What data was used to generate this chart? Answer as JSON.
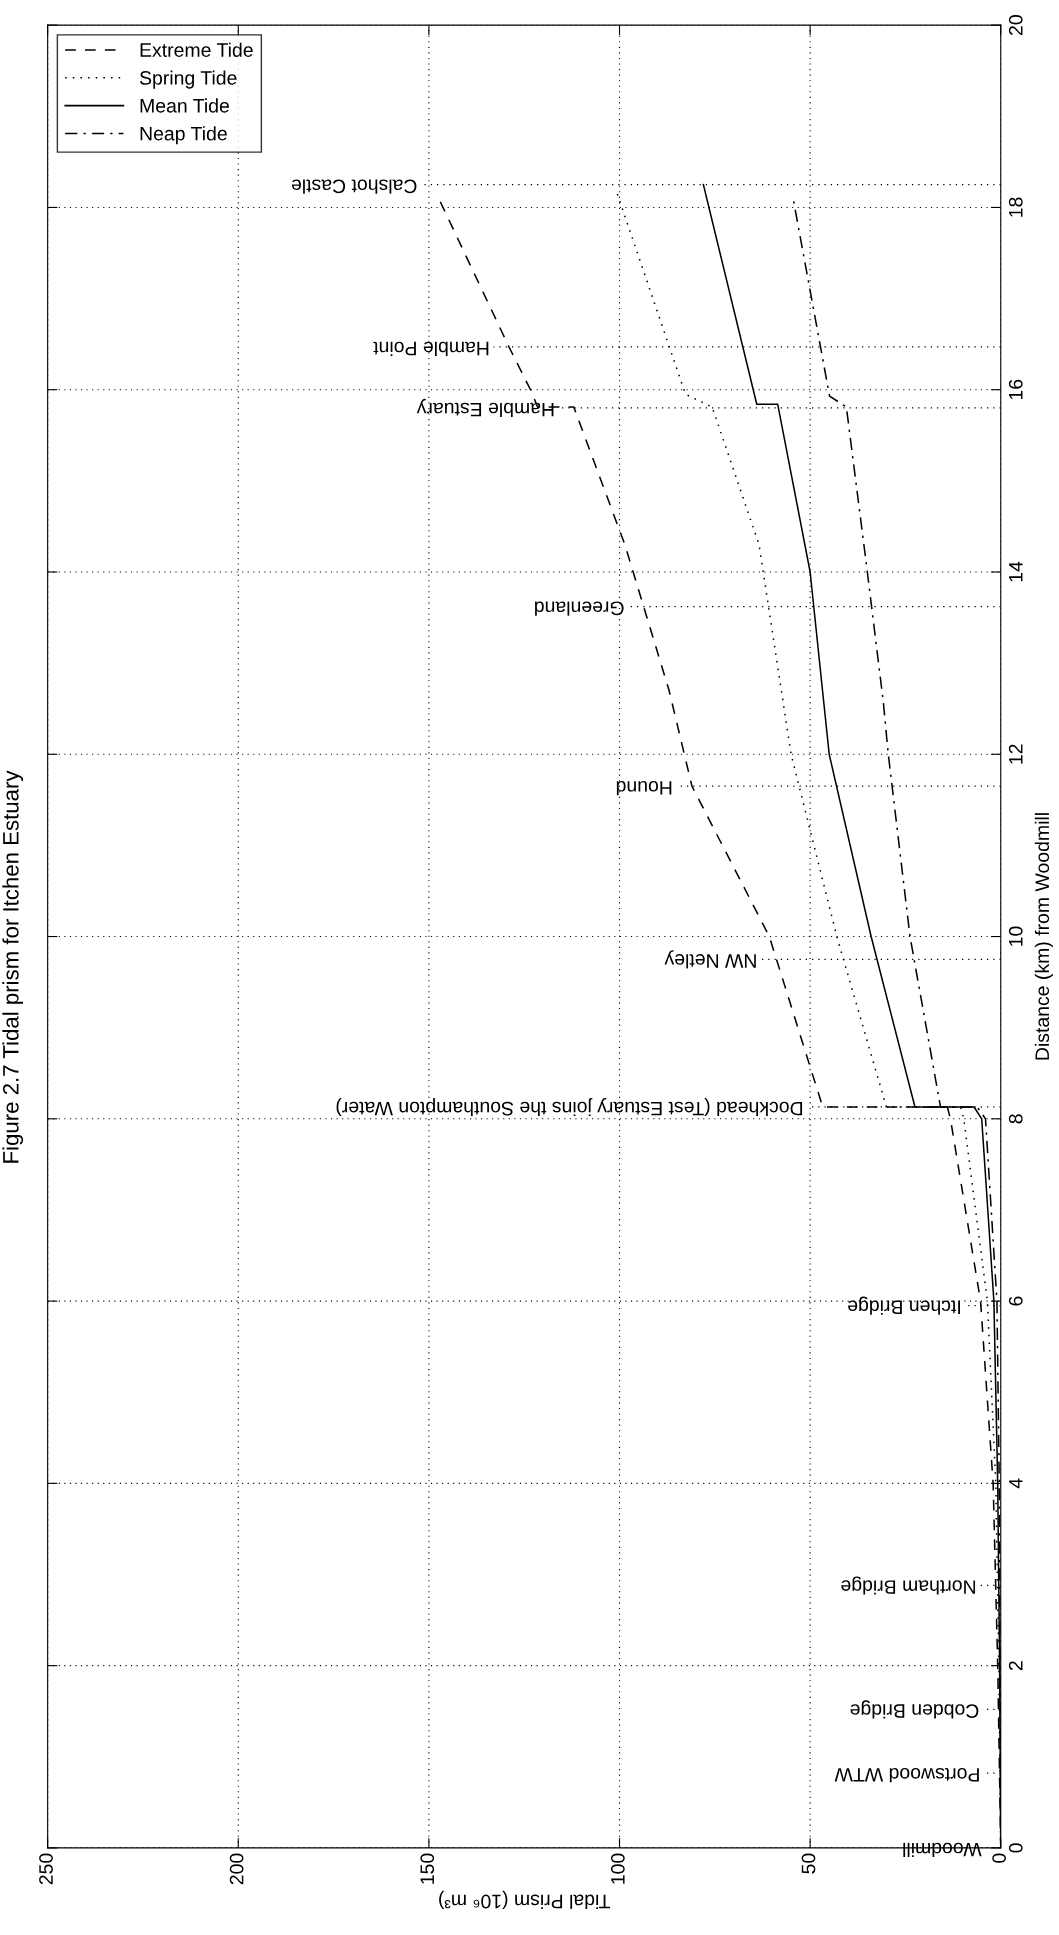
{
  "chart_data": {
    "type": "line",
    "title": "Figure 2.7 Tidal prism for Itchen Estuary",
    "xlabel": "Tidal Prism (10⁶ m³)",
    "ylabel": "Distance (km) from Woodmill",
    "xlim": [
      250,
      0
    ],
    "xticks": [
      0,
      50,
      100,
      150,
      200,
      250
    ],
    "ylim": [
      0,
      20
    ],
    "yticks": [
      0,
      2,
      4,
      6,
      8,
      10,
      12,
      14,
      16,
      18,
      20
    ],
    "grid": true,
    "legend": "top left",
    "series": [
      {
        "name": "Extreme Tide",
        "color": "#000000",
        "line_style": "dashed",
        "x": [
          0,
          0.8,
          2,
          5.3,
          13.2,
          14,
          46.7,
          60.7,
          81,
          87,
          98.6,
          112,
          121.5,
          123,
          129,
          148
        ],
        "values": [
          0,
          2,
          4,
          6,
          8,
          8.13,
          8.13,
          10,
          11.65,
          12.7,
          14.3,
          15.81,
          15.81,
          15.97,
          16.47,
          18.15
        ]
      },
      {
        "name": "Spring Tide",
        "color": "#000000",
        "line_style": "dotted",
        "x": [
          0,
          0.5,
          1.3,
          3.5,
          9.7,
          10.5,
          30,
          43,
          55,
          63.4,
          75.7,
          82.7,
          101
        ],
        "values": [
          0,
          2,
          4,
          6,
          8,
          8.13,
          8.13,
          10,
          12,
          14.3,
          15.81,
          15.95,
          18.2
        ]
      },
      {
        "name": "Mean Tide",
        "color": "#000000",
        "line_style": "solid",
        "x": [
          0,
          0.3,
          0.8,
          1.8,
          5,
          7,
          22.5,
          34,
          45,
          50,
          58.5,
          64,
          78
        ],
        "values": [
          0,
          2,
          4,
          6,
          8,
          8.13,
          8.13,
          10,
          12,
          14,
          15.84,
          15.84,
          18.25
        ]
      },
      {
        "name": "Neap Tide",
        "color": "#000000",
        "line_style": "dashdot",
        "x": [
          0,
          0.15,
          0.4,
          1,
          4,
          6.2,
          15.8,
          23.8,
          29.5,
          30.8,
          35.2,
          40.5,
          44.9,
          54.6
        ],
        "values": [
          0,
          2,
          4,
          6,
          8,
          8.13,
          8.13,
          10,
          12,
          12.57,
          14.07,
          15.81,
          15.93,
          18.13
        ]
      }
    ],
    "ref_lines": [
      {
        "axis": "y",
        "value": 0,
        "label": "Woodmill",
        "color": "#000000",
        "line_style": "dotted"
      },
      {
        "axis": "y",
        "value": 0.82,
        "label": "Portswood WTW",
        "color": "#000000",
        "line_style": "dotted"
      },
      {
        "axis": "y",
        "value": 1.52,
        "label": "Cobden Bridge",
        "color": "#000000",
        "line_style": "dotted"
      },
      {
        "axis": "y",
        "value": 2.88,
        "label": "Northam Bridge",
        "color": "#000000",
        "line_style": "dotted"
      },
      {
        "axis": "y",
        "value": 5.95,
        "label": "Itchen Bridge",
        "color": "#000000",
        "line_style": "dotted"
      },
      {
        "axis": "y",
        "value": 8.13,
        "label": "Dockhead (Test Estuary joins the Southampton Water)",
        "color": "#000000",
        "line_style": "dotted"
      },
      {
        "axis": "y",
        "value": 9.75,
        "label": "NW Netley",
        "color": "#000000",
        "line_style": "dotted"
      },
      {
        "axis": "y",
        "value": 11.65,
        "label": "Hound",
        "color": "#000000",
        "line_style": "dotted"
      },
      {
        "axis": "y",
        "value": 13.62,
        "label": "Greenland",
        "color": "#000000",
        "line_style": "dotted"
      },
      {
        "axis": "y",
        "value": 15.8,
        "label": "Hamble Estuary",
        "color": "#000000",
        "line_style": "dotted"
      },
      {
        "axis": "y",
        "value": 16.47,
        "label": "Hamble Point",
        "color": "#000000",
        "line_style": "dotted"
      },
      {
        "axis": "y",
        "value": 18.25,
        "label": "Calshot Castle",
        "color": "#000000",
        "line_style": "dotted"
      }
    ]
  }
}
